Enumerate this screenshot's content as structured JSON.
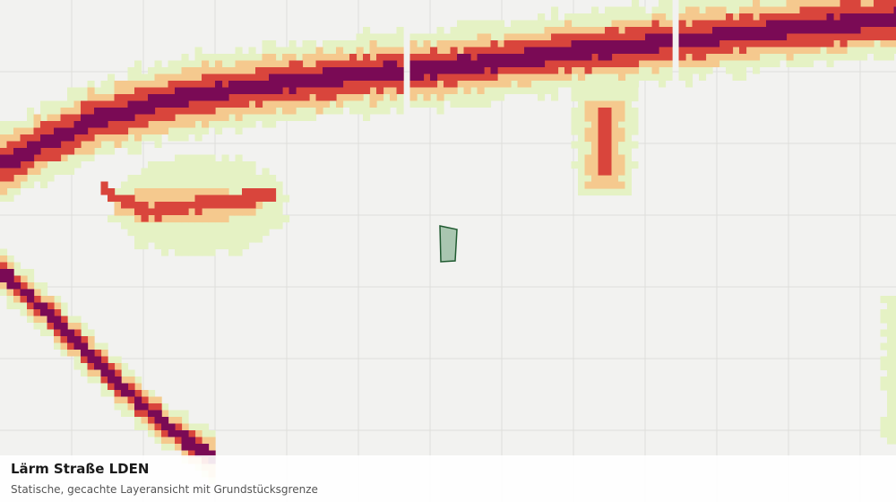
{
  "map": {
    "layer_title": "Lärm Straße LDEN",
    "layer_subtitle": "Statische, gecachte Layeransicht mit Grundstücksgrenze",
    "colors": {
      "background": "#f2f2f0",
      "grid": "#dededb",
      "noise_low": "#e5f2c4",
      "noise_mid": "#f5c98e",
      "noise_high": "#d9453c",
      "noise_very_high": "#7a0a55",
      "parcel_fill": "#a9c6b0",
      "parcel_stroke": "#1f5a30"
    },
    "parcel": {
      "name": "grundstuecksgrenze",
      "style": "outlined polygon"
    }
  }
}
